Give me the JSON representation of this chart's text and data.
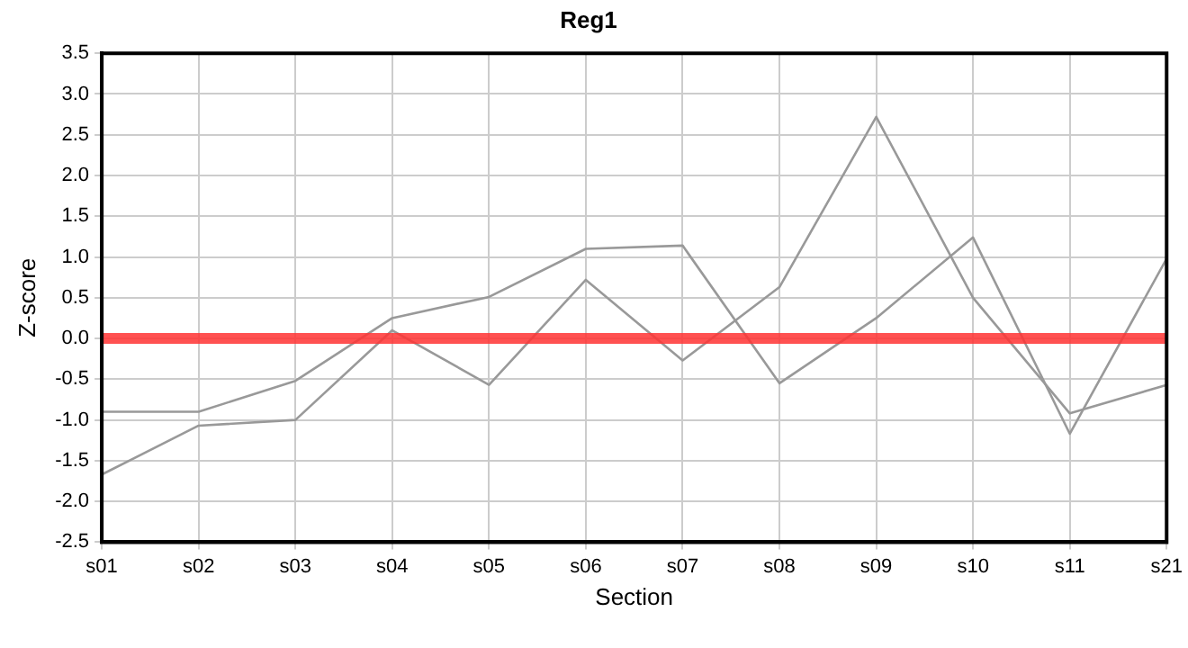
{
  "chart_data": {
    "type": "line",
    "title": "Reg1",
    "xlabel": "Section",
    "ylabel": "Z-score",
    "categories": [
      "s01",
      "s02",
      "s03",
      "s04",
      "s05",
      "s06",
      "s07",
      "s08",
      "s09",
      "s10",
      "s11",
      "s21"
    ],
    "series": [
      {
        "color": "#999999",
        "values": [
          -0.9,
          -0.9,
          -0.52,
          0.25,
          0.51,
          1.1,
          1.14,
          -0.55,
          0.25,
          1.24,
          -1.17,
          0.98
        ]
      },
      {
        "color": "#999999",
        "values": [
          -1.67,
          -1.07,
          -1.0,
          0.1,
          -0.57,
          0.72,
          -0.27,
          0.63,
          2.72,
          0.5,
          -0.92,
          -0.57
        ]
      }
    ],
    "ylim": [
      -2.5,
      3.5
    ],
    "yticks": [
      -2.5,
      {
        "value": -2,
        "label": "-2.0"
      },
      -1.5,
      {
        "value": -1,
        "label": "-1.0"
      },
      -0.5,
      {
        "value": 0,
        "label": "0.0"
      },
      0.5,
      {
        "value": 1,
        "label": "1.0"
      },
      1.5,
      {
        "value": 2,
        "label": "2.0"
      },
      2.5,
      {
        "value": 3,
        "label": "3.0"
      },
      3.5
    ],
    "ref_lines": [
      {
        "axis": "y",
        "value": 0,
        "color": "#ff3333"
      }
    ],
    "grid": true,
    "legend": false,
    "marker": "none",
    "line_style": "solid"
  }
}
